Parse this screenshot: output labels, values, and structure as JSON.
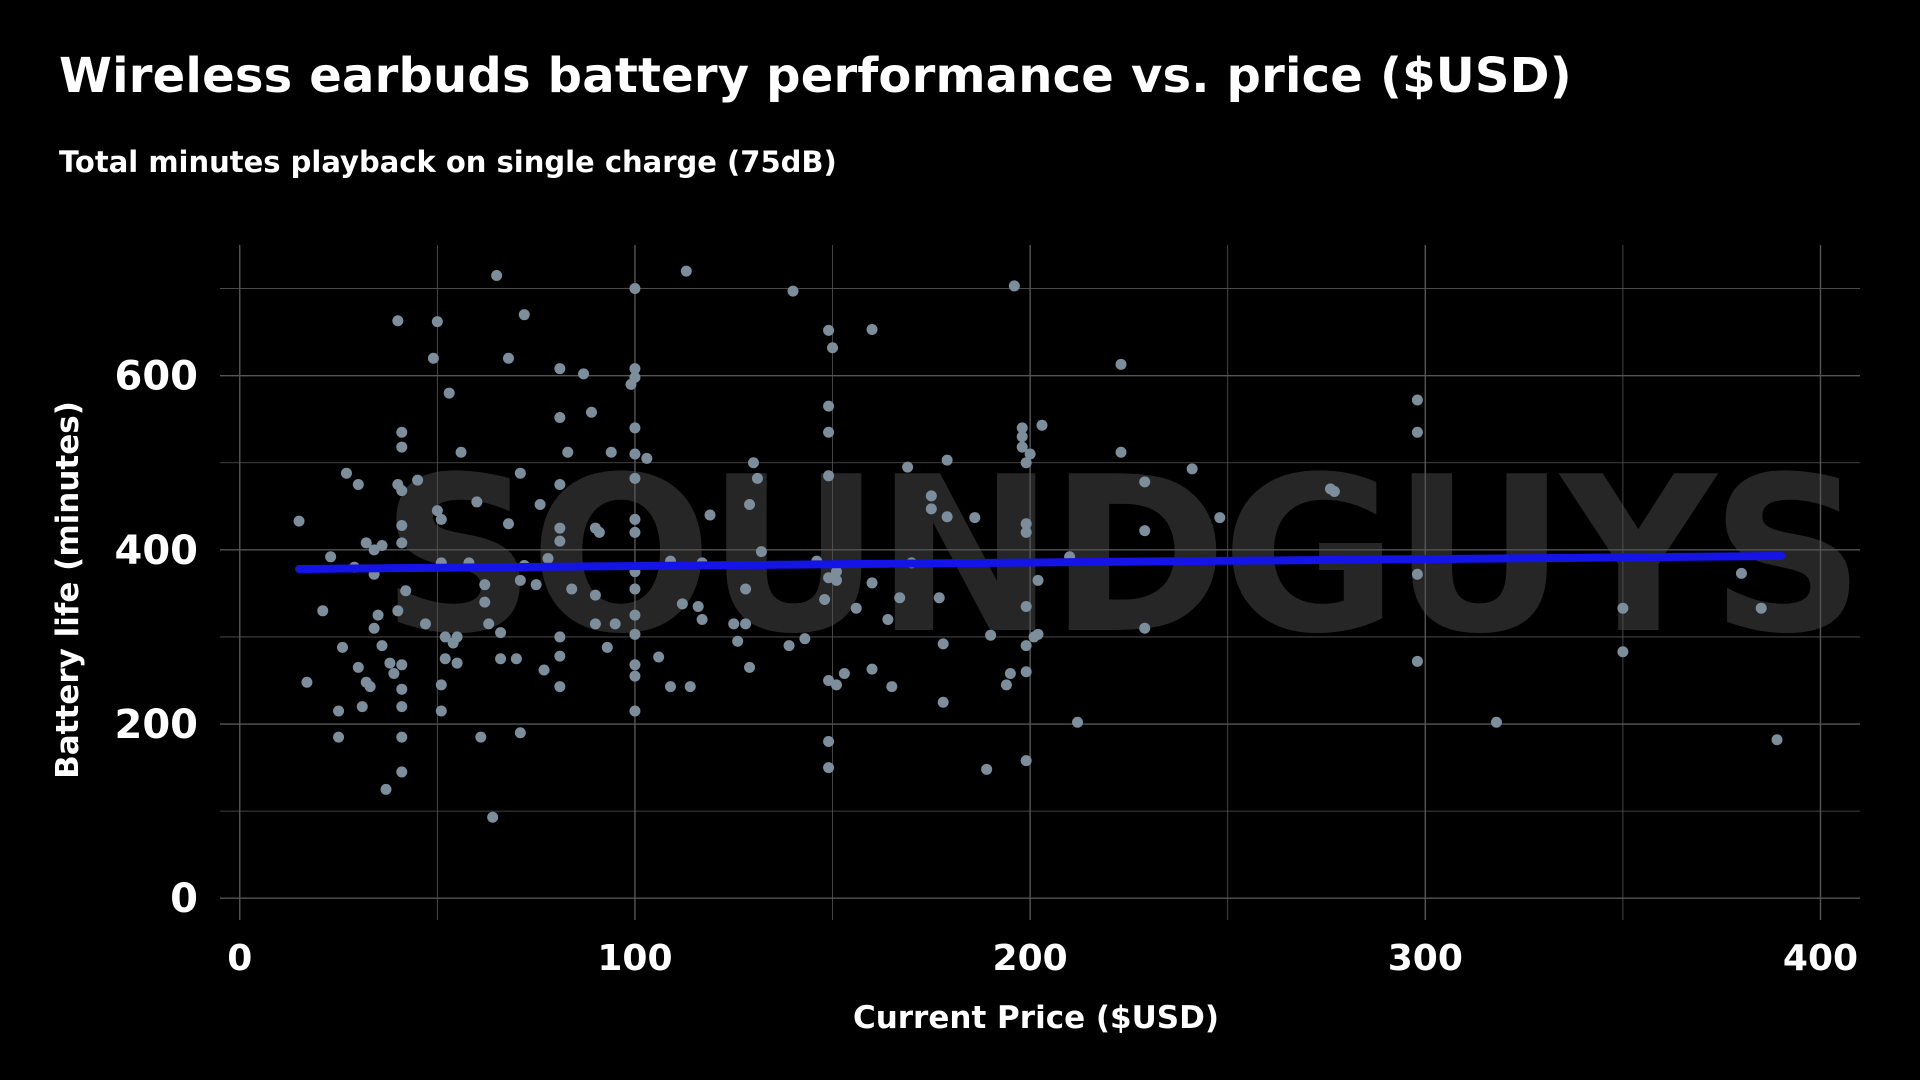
{
  "chart_data": {
    "type": "scatter",
    "title": "Wireless earbuds battery performance vs. price ($USD)",
    "subtitle": "Total minutes playback on single charge (75dB)",
    "xlabel": "Current Price ($USD)",
    "ylabel": "Battery life (minutes)",
    "xlim": [
      -5,
      410
    ],
    "ylim": [
      -25,
      750
    ],
    "xticks": [
      0,
      100,
      200,
      300,
      400
    ],
    "yticks": [
      0,
      200,
      400,
      600
    ],
    "grid": true,
    "watermark": "SOUNDGUYS",
    "colors": {
      "points": "#7c8d9b",
      "trend": "#1414e6",
      "background": "#000000",
      "grid": "#555555",
      "text": "#ffffff"
    },
    "trend_line": {
      "x": [
        15,
        390
      ],
      "y": [
        378,
        393
      ]
    },
    "points": [
      [
        15,
        433
      ],
      [
        17,
        248
      ],
      [
        21,
        330
      ],
      [
        23,
        392
      ],
      [
        25,
        185
      ],
      [
        25,
        215
      ],
      [
        26,
        288
      ],
      [
        27,
        488
      ],
      [
        29,
        380
      ],
      [
        30,
        475
      ],
      [
        30,
        265
      ],
      [
        31,
        220
      ],
      [
        32,
        408
      ],
      [
        32,
        248
      ],
      [
        33,
        243
      ],
      [
        34,
        400
      ],
      [
        34,
        372
      ],
      [
        34,
        310
      ],
      [
        35,
        325
      ],
      [
        36,
        405
      ],
      [
        36,
        290
      ],
      [
        37,
        125
      ],
      [
        38,
        270
      ],
      [
        39,
        258
      ],
      [
        40,
        330
      ],
      [
        40,
        475
      ],
      [
        40,
        663
      ],
      [
        41,
        535
      ],
      [
        41,
        518
      ],
      [
        41,
        468
      ],
      [
        41,
        428
      ],
      [
        41,
        408
      ],
      [
        41,
        268
      ],
      [
        41,
        240
      ],
      [
        41,
        220
      ],
      [
        41,
        185
      ],
      [
        41,
        145
      ],
      [
        42,
        353
      ],
      [
        45,
        480
      ],
      [
        47,
        315
      ],
      [
        49,
        620
      ],
      [
        50,
        662
      ],
      [
        50,
        445
      ],
      [
        51,
        435
      ],
      [
        51,
        385
      ],
      [
        51,
        245
      ],
      [
        51,
        215
      ],
      [
        52,
        300
      ],
      [
        52,
        275
      ],
      [
        53,
        580
      ],
      [
        54,
        293
      ],
      [
        55,
        300
      ],
      [
        55,
        270
      ],
      [
        56,
        512
      ],
      [
        58,
        385
      ],
      [
        60,
        455
      ],
      [
        61,
        185
      ],
      [
        62,
        360
      ],
      [
        62,
        340
      ],
      [
        63,
        315
      ],
      [
        64,
        93
      ],
      [
        65,
        715
      ],
      [
        66,
        275
      ],
      [
        66,
        305
      ],
      [
        68,
        620
      ],
      [
        68,
        430
      ],
      [
        70,
        275
      ],
      [
        71,
        488
      ],
      [
        71,
        365
      ],
      [
        71,
        190
      ],
      [
        72,
        670
      ],
      [
        72,
        382
      ],
      [
        75,
        360
      ],
      [
        76,
        452
      ],
      [
        77,
        262
      ],
      [
        78,
        390
      ],
      [
        81,
        608
      ],
      [
        81,
        552
      ],
      [
        81,
        475
      ],
      [
        81,
        425
      ],
      [
        81,
        410
      ],
      [
        81,
        300
      ],
      [
        81,
        278
      ],
      [
        81,
        243
      ],
      [
        83,
        512
      ],
      [
        84,
        355
      ],
      [
        87,
        602
      ],
      [
        89,
        558
      ],
      [
        90,
        425
      ],
      [
        90,
        348
      ],
      [
        90,
        315
      ],
      [
        91,
        420
      ],
      [
        93,
        288
      ],
      [
        94,
        512
      ],
      [
        95,
        315
      ],
      [
        99,
        590
      ],
      [
        100,
        700
      ],
      [
        100,
        608
      ],
      [
        100,
        598
      ],
      [
        100,
        540
      ],
      [
        100,
        510
      ],
      [
        100,
        482
      ],
      [
        100,
        435
      ],
      [
        100,
        420
      ],
      [
        100,
        375
      ],
      [
        100,
        355
      ],
      [
        100,
        325
      ],
      [
        100,
        303
      ],
      [
        100,
        268
      ],
      [
        100,
        255
      ],
      [
        100,
        215
      ],
      [
        103,
        505
      ],
      [
        106,
        277
      ],
      [
        109,
        387
      ],
      [
        109,
        243
      ],
      [
        112,
        338
      ],
      [
        113,
        720
      ],
      [
        114,
        243
      ],
      [
        116,
        335
      ],
      [
        117,
        385
      ],
      [
        117,
        320
      ],
      [
        119,
        440
      ],
      [
        125,
        315
      ],
      [
        126,
        295
      ],
      [
        128,
        355
      ],
      [
        128,
        315
      ],
      [
        129,
        452
      ],
      [
        129,
        265
      ],
      [
        130,
        500
      ],
      [
        131,
        482
      ],
      [
        132,
        398
      ],
      [
        139,
        290
      ],
      [
        140,
        697
      ],
      [
        143,
        298
      ],
      [
        146,
        387
      ],
      [
        148,
        343
      ],
      [
        149,
        652
      ],
      [
        149,
        565
      ],
      [
        149,
        535
      ],
      [
        149,
        485
      ],
      [
        149,
        368
      ],
      [
        149,
        250
      ],
      [
        149,
        180
      ],
      [
        149,
        150
      ],
      [
        150,
        632
      ],
      [
        151,
        375
      ],
      [
        151,
        365
      ],
      [
        151,
        245
      ],
      [
        153,
        258
      ],
      [
        156,
        333
      ],
      [
        160,
        653
      ],
      [
        160,
        362
      ],
      [
        160,
        263
      ],
      [
        164,
        320
      ],
      [
        165,
        243
      ],
      [
        167,
        345
      ],
      [
        169,
        495
      ],
      [
        170,
        385
      ],
      [
        175,
        462
      ],
      [
        175,
        447
      ],
      [
        177,
        345
      ],
      [
        178,
        292
      ],
      [
        178,
        225
      ],
      [
        179,
        503
      ],
      [
        179,
        438
      ],
      [
        186,
        437
      ],
      [
        189,
        148
      ],
      [
        190,
        302
      ],
      [
        194,
        245
      ],
      [
        195,
        258
      ],
      [
        196,
        703
      ],
      [
        198,
        540
      ],
      [
        198,
        530
      ],
      [
        198,
        518
      ],
      [
        199,
        500
      ],
      [
        199,
        430
      ],
      [
        199,
        420
      ],
      [
        199,
        335
      ],
      [
        199,
        290
      ],
      [
        199,
        260
      ],
      [
        199,
        158
      ],
      [
        200,
        510
      ],
      [
        201,
        300
      ],
      [
        202,
        365
      ],
      [
        202,
        303
      ],
      [
        203,
        543
      ],
      [
        210,
        392
      ],
      [
        212,
        202
      ],
      [
        223,
        613
      ],
      [
        223,
        512
      ],
      [
        229,
        478
      ],
      [
        229,
        422
      ],
      [
        229,
        310
      ],
      [
        241,
        493
      ],
      [
        248,
        437
      ],
      [
        276,
        470
      ],
      [
        277,
        467
      ],
      [
        298,
        572
      ],
      [
        298,
        535
      ],
      [
        298,
        372
      ],
      [
        298,
        272
      ],
      [
        318,
        202
      ],
      [
        350,
        333
      ],
      [
        350,
        283
      ],
      [
        380,
        373
      ],
      [
        385,
        333
      ],
      [
        389,
        182
      ]
    ]
  }
}
